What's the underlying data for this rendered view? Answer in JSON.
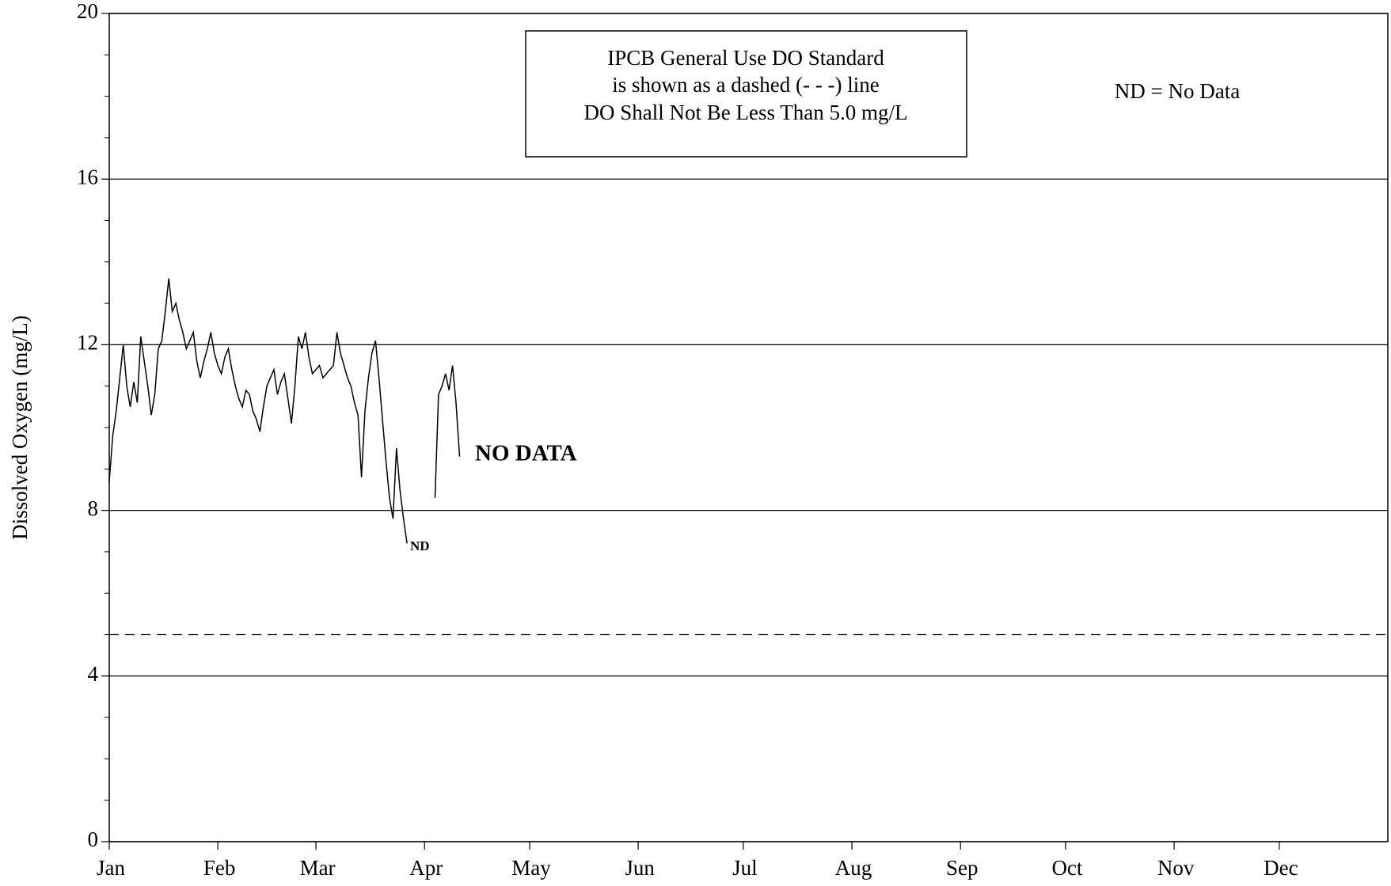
{
  "chart_data": {
    "type": "line",
    "y_label": "Dissolved Oxygen (mg/L)",
    "annotations": {
      "standard_box": [
        "IPCB General Use DO Standard",
        "is shown as a dashed (- - -) line",
        "DO Shall Not Be Less Than 5.0 mg/L"
      ],
      "legend_note": "ND = No Data",
      "no_data": "NO DATA",
      "nd": "ND"
    },
    "standard": 5,
    "xlim": [
      0,
      365
    ],
    "xticks": [
      {
        "value": 0,
        "label": "Jan"
      },
      {
        "value": 31,
        "label": "Feb"
      },
      {
        "value": 59,
        "label": "Mar"
      },
      {
        "value": 90,
        "label": "Apr"
      },
      {
        "value": 120,
        "label": "May"
      },
      {
        "value": 151,
        "label": "Jun"
      },
      {
        "value": 181,
        "label": "Jul"
      },
      {
        "value": 212,
        "label": "Aug"
      },
      {
        "value": 243,
        "label": "Sep"
      },
      {
        "value": 273,
        "label": "Oct"
      },
      {
        "value": 304,
        "label": "Nov"
      },
      {
        "value": 334,
        "label": "Dec"
      }
    ],
    "ylim": [
      0,
      20
    ],
    "yticks": [
      0,
      4,
      8,
      12,
      16,
      20
    ],
    "yminorticks": [
      1,
      2,
      3,
      5,
      6,
      7,
      9,
      10,
      11,
      13,
      14,
      15,
      17,
      18,
      19
    ],
    "grid": true,
    "series": [
      {
        "color": "#000000",
        "x": [
          0,
          1,
          2,
          3,
          4,
          5,
          6,
          7,
          8,
          9,
          10,
          11,
          12,
          13,
          14,
          15,
          16,
          17,
          18,
          19,
          20,
          21,
          22,
          23,
          24,
          25,
          26,
          27,
          28,
          29,
          30,
          31,
          32,
          33,
          34,
          35,
          36,
          37,
          38,
          39,
          40,
          41,
          42,
          43,
          44,
          45,
          46,
          47,
          48,
          49,
          50,
          51,
          52,
          53,
          54,
          55,
          56,
          57,
          58,
          59,
          60,
          61,
          62,
          63,
          64,
          65,
          66,
          67,
          68,
          69,
          70,
          71,
          72,
          73,
          74,
          75,
          76,
          77,
          78,
          79,
          80,
          81,
          82,
          83,
          84,
          85,
          89,
          93,
          94,
          95,
          96,
          97,
          98,
          99,
          100
        ],
        "values": [
          8.7,
          9.8,
          10.4,
          11.2,
          12.0,
          11.0,
          10.5,
          11.1,
          10.6,
          12.2,
          11.6,
          11.0,
          10.3,
          10.8,
          11.9,
          12.1,
          12.8,
          13.6,
          12.8,
          13.0,
          12.6,
          12.3,
          11.9,
          12.1,
          12.3,
          11.6,
          11.2,
          11.6,
          11.9,
          12.3,
          11.8,
          11.5,
          11.3,
          11.7,
          11.9,
          11.4,
          11.0,
          10.7,
          10.5,
          10.9,
          10.8,
          10.4,
          10.2,
          9.9,
          10.5,
          11.0,
          11.2,
          11.4,
          10.8,
          11.1,
          11.3,
          10.7,
          10.1,
          11.0,
          12.2,
          11.9,
          12.3,
          11.7,
          11.3,
          11.4,
          11.5,
          11.2,
          11.3,
          11.4,
          11.5,
          12.3,
          11.8,
          11.5,
          11.2,
          11.0,
          10.6,
          10.3,
          8.8,
          10.4,
          11.2,
          11.8,
          12.1,
          11.2,
          10.2,
          9.2,
          8.3,
          7.8,
          9.5,
          8.5,
          7.8,
          7.2,
          null,
          8.3,
          10.8,
          11.0,
          11.3,
          10.9,
          11.5,
          10.6,
          9.3
        ]
      }
    ]
  }
}
